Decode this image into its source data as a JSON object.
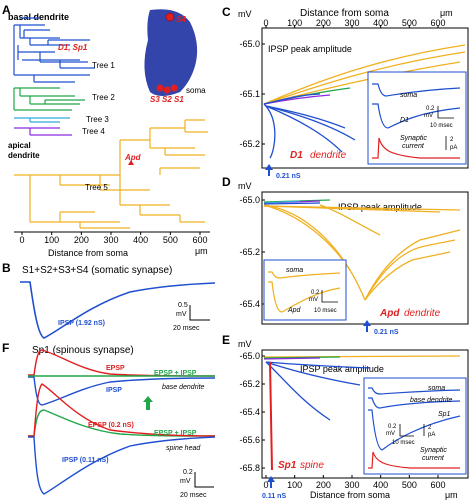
{
  "colors": {
    "blue": "#1f4fcf",
    "orange": "#f0b020",
    "green": "#21a64a",
    "red": "#e02020",
    "purple": "#8a2be2",
    "cyan": "#33aadd",
    "navy": "#1a2a8a",
    "soma": "#3344aa",
    "accent_red": "#d01010"
  },
  "panelA": {
    "label": "A",
    "basal_dendrite": "basal dendrite",
    "d1_sp1": "D1, Sp1",
    "tree1": "Tree 1",
    "tree2": "Tree 2",
    "tree3": "Tree 3",
    "tree4": "Tree 4",
    "tree5": "Tree 5",
    "apical": "apical",
    "dendrite": "dendrite",
    "apd": "Apd",
    "s4": "S4",
    "s3s2s1": "S3 S2 S1",
    "soma": "soma",
    "axis_label": "Distance from soma",
    "unit": "μm",
    "ticks": [
      "0",
      "100",
      "200",
      "300",
      "400",
      "500",
      "600"
    ]
  },
  "panelB": {
    "label": "B",
    "title": "S1+S2+S3+S4 (somatic synapse)",
    "ipsp": "IPSP (1.92 nS)",
    "scale_v": "0.5",
    "scale_v_unit": "mV",
    "scale_t": "20 msec"
  },
  "panelF": {
    "label": "F",
    "title": "Sp1 (spinous synapse)",
    "epsp": "EPSP",
    "ipsp": "IPSP",
    "epsp_ipsp_1": "EPSP + IPSP",
    "base_dendrite": "base dendrite",
    "epsp_02": "EPSP (0.2 nS)",
    "epsp_ipsp_2": "EPSP + IPSP",
    "spine_head": "spine head",
    "ipsp_011": "IPSP (0.11 nS)",
    "scale_v": "0.2",
    "scale_v_unit": "mV",
    "scale_t": "20 msec"
  },
  "panelC": {
    "label": "C",
    "mv": "mV",
    "top_label": "Distance from soma",
    "unit": "μm",
    "ticks": [
      "0",
      "100",
      "200",
      "300",
      "400",
      "500",
      "600"
    ],
    "yticks": [
      "-65.0",
      "-65.1",
      "-65.2"
    ],
    "title": "IPSP peak amplitude",
    "marker_name": "D1",
    "marker_suffix": "dendrite",
    "arrow_label": "0.21 nS",
    "inset_soma": "soma",
    "inset_d1": "D1",
    "inset_scale_v": "0.2",
    "inset_scale_v_unit": "mV",
    "inset_scale_t": "10 msec",
    "inset_syn1": "Synaptic",
    "inset_syn2": "current",
    "inset_scale_i": "2",
    "inset_scale_i_unit": "pA"
  },
  "panelD": {
    "label": "D",
    "mv": "mV",
    "yticks": [
      "-65.0",
      "-65.2",
      "-65.4"
    ],
    "title": "IPSP peak amplitude",
    "marker_name": "Apd",
    "marker_suffix": "dendrite",
    "arrow_label": "0.21 nS",
    "inset_soma": "soma",
    "inset_apd": "Apd",
    "inset_scale_v": "0.2",
    "inset_scale_v_unit": "mV",
    "inset_scale_t": "10 msec"
  },
  "panelE": {
    "label": "E",
    "mv": "mV",
    "yticks": [
      "-65.0",
      "-65.2",
      "-65.4",
      "-65.6",
      "-65.8"
    ],
    "xticks": [
      "0",
      "100",
      "200",
      "300",
      "400",
      "500",
      "600"
    ],
    "unit": "μm",
    "axis_label": "Distance from soma",
    "title": "IPSP peak amplitude",
    "marker_name": "Sp1",
    "marker_suffix": "spine",
    "arrow_label": "0.11 nS",
    "inset_soma": "soma",
    "inset_base": "base dendrite",
    "inset_sp1": "Sp1",
    "inset_scale_v": "0.2",
    "inset_scale_v_unit": "mV",
    "inset_scale_t": "10 msec",
    "inset_scale_i": "2",
    "inset_scale_i_unit": "pA",
    "inset_syn1": "Synaptic",
    "inset_syn2": "current"
  }
}
